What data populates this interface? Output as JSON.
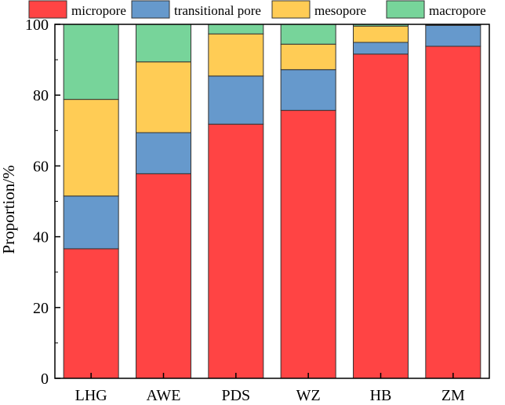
{
  "chart_data": {
    "type": "bar",
    "stacked": true,
    "categories": [
      "LHG",
      "AWE",
      "PDS",
      "WZ",
      "HB",
      "ZM"
    ],
    "series": [
      {
        "name": "micropore",
        "color": "#ff4444",
        "values": [
          36.6,
          57.8,
          71.8,
          75.7,
          91.6,
          93.8
        ]
      },
      {
        "name": "transitional pore",
        "color": "#6699cc",
        "values": [
          14.9,
          11.6,
          13.6,
          11.5,
          3.3,
          5.9
        ]
      },
      {
        "name": "mesopore",
        "color": "#ffcc55",
        "values": [
          27.3,
          20.0,
          11.9,
          7.2,
          4.6,
          0.1
        ]
      },
      {
        "name": "macropore",
        "color": "#77d49a",
        "values": [
          21.2,
          10.6,
          2.7,
          5.6,
          0.5,
          0.2
        ]
      }
    ],
    "title": "",
    "xlabel": "",
    "ylabel": "Proportion/%",
    "ylim": [
      0,
      100
    ],
    "yticks": [
      0,
      20,
      40,
      60,
      80,
      100
    ],
    "grid": false,
    "legend_position": "top"
  }
}
